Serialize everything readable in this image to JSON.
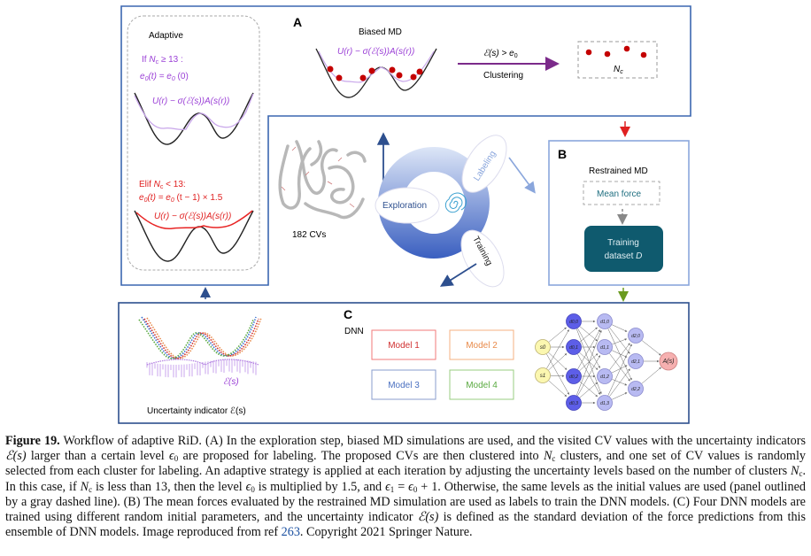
{
  "figure": {
    "panel_a": {
      "label": "A",
      "adaptive_title": "Adaptive",
      "if_cond": {
        "prefix": "If ",
        "N": "N",
        "sub": "c",
        "rest": " ≥ 13 :"
      },
      "if_rule": {
        "e": "e",
        "sub0": "0",
        "mid": "(t) = e",
        "sub1": "0",
        "rest": " (0)"
      },
      "elif_cond": {
        "prefix": "Elif ",
        "N": "N",
        "sub": "c",
        "rest": " < 13:"
      },
      "elif_rule": {
        "e": "e",
        "sub0": "0",
        "mid": "(t) = e",
        "sub1": "0",
        "rest": " (t − 1) × 1.5"
      },
      "biased_potential": "U(r) − σ(ℰ(s))A(s(r))",
      "biased_md_title": "Biased MD",
      "arrow_condition": {
        "main": "ℰ(s) > e",
        "sub": "0"
      },
      "arrow_label": "Clustering",
      "clusters_label": {
        "N": "N",
        "sub": "c"
      },
      "protein_label": "182 CVs",
      "cycle": {
        "exploration": "Exploration",
        "labeling": "Labeling",
        "training": "Training"
      }
    },
    "panel_b": {
      "label": "B",
      "title": "Restrained MD",
      "mean_force": "Mean force",
      "dataset_line1": "Training",
      "dataset_line2_prefix": "dataset ",
      "dataset_line2_var": "D"
    },
    "panel_c": {
      "label": "C",
      "dnn_label": "DNN",
      "models": [
        "Model 1",
        "Model 2",
        "Model 3",
        "Model 4"
      ],
      "uncertainty_symbol": "ℰ(s)",
      "uncertainty_caption": "Uncertainty indicator ℰ(s)",
      "network": {
        "inputs": [
          "s0",
          "s1"
        ],
        "layer0": [
          "d0,0",
          "d0,1",
          "d0,2",
          "d0,3"
        ],
        "layer1": [
          "d1,0",
          "d1,1",
          "d1,2",
          "d1,3"
        ],
        "layer2": [
          "d2,0",
          "d2,1",
          "d2,2"
        ],
        "output": "A(s)"
      }
    },
    "colors": {
      "frame": "#3b67b0",
      "purple": "#9a3fd6",
      "red": "#e02020",
      "teal": "#0f5a6e",
      "dot": "#c40000"
    }
  },
  "caption": {
    "label": "Figure 19.",
    "t1": " Workflow of adaptive RiD. (A) In the exploration step, biased MD simulations are used, and the visited CV values with the uncertainty indicators ",
    "E": "ℰ(s)",
    "t2": " larger than a certain level ",
    "eps": "ϵ",
    "zero": "0",
    "one": "1",
    "N": "N",
    "c": "c",
    "t3": " are proposed for labeling. The proposed CVs are then clustered into ",
    "t4": " clusters, and one set of CV values is randomly selected from each cluster for labeling. An adaptive strategy is applied at each iteration by adjusting the uncertainty levels based on the number of clusters ",
    "t5": ". In this case, if ",
    "t6": " is less than 13, then the level ",
    "t7": " is multiplied by 1.5, and ",
    "t8": " = ",
    "t9": " + 1. Otherwise, the same levels as the initial values are used (panel outlined by a gray dashed line). (B) The mean forces evaluated by the restrained MD simulation are used as labels to train the DNN models. (C) Four DNN models are trained using different random initial parameters, and the uncertainty indicator ",
    "t10": " is defined as the standard deviation of the force predictions from this ensemble of DNN models. Image reproduced from ref ",
    "ref": "263",
    "t11": ". Copyright 2021 Springer Nature."
  }
}
